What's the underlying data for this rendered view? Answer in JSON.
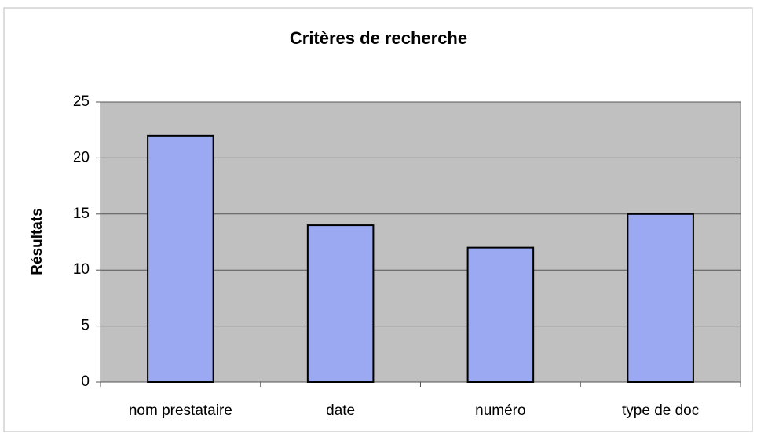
{
  "chart_data": {
    "type": "bar",
    "title": "Critères de recherche",
    "y_label": "Résultats",
    "categories": [
      "nom prestataire",
      "date",
      "numéro",
      "type de doc"
    ],
    "values": [
      22,
      14,
      12,
      15
    ],
    "color": "#9aa9f2",
    "ylim": [
      0,
      25
    ],
    "yticks": [
      0,
      5,
      10,
      15,
      20,
      25
    ],
    "grid": true
  }
}
